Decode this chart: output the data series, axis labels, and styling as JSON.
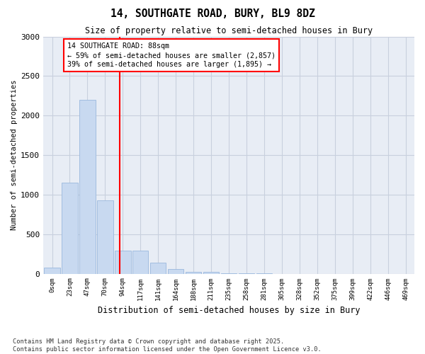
{
  "title": "14, SOUTHGATE ROAD, BURY, BL9 8DZ",
  "subtitle": "Size of property relative to semi-detached houses in Bury",
  "xlabel": "Distribution of semi-detached houses by size in Bury",
  "ylabel": "Number of semi-detached properties",
  "footer": "Contains HM Land Registry data © Crown copyright and database right 2025.\nContains public sector information licensed under the Open Government Licence v3.0.",
  "bar_labels": [
    "0sqm",
    "23sqm",
    "47sqm",
    "70sqm",
    "94sqm",
    "117sqm",
    "141sqm",
    "164sqm",
    "188sqm",
    "211sqm",
    "235sqm",
    "258sqm",
    "281sqm",
    "305sqm",
    "328sqm",
    "352sqm",
    "375sqm",
    "399sqm",
    "422sqm",
    "446sqm",
    "469sqm"
  ],
  "bar_values": [
    75,
    1150,
    2200,
    930,
    290,
    290,
    140,
    60,
    25,
    20,
    5,
    3,
    2,
    0,
    0,
    0,
    0,
    0,
    0,
    0,
    0
  ],
  "bar_color": "#c8d9f0",
  "bar_edge_color": "#9ab8dd",
  "grid_color": "#c8d0de",
  "background_color": "#e8edf5",
  "vline_color": "red",
  "vline_x_index": 3.82,
  "annotation_text": "14 SOUTHGATE ROAD: 88sqm\n← 59% of semi-detached houses are smaller (2,857)\n39% of semi-detached houses are larger (1,895) →",
  "ylim": [
    0,
    3000
  ],
  "yticks": [
    0,
    500,
    1000,
    1500,
    2000,
    2500,
    3000
  ]
}
